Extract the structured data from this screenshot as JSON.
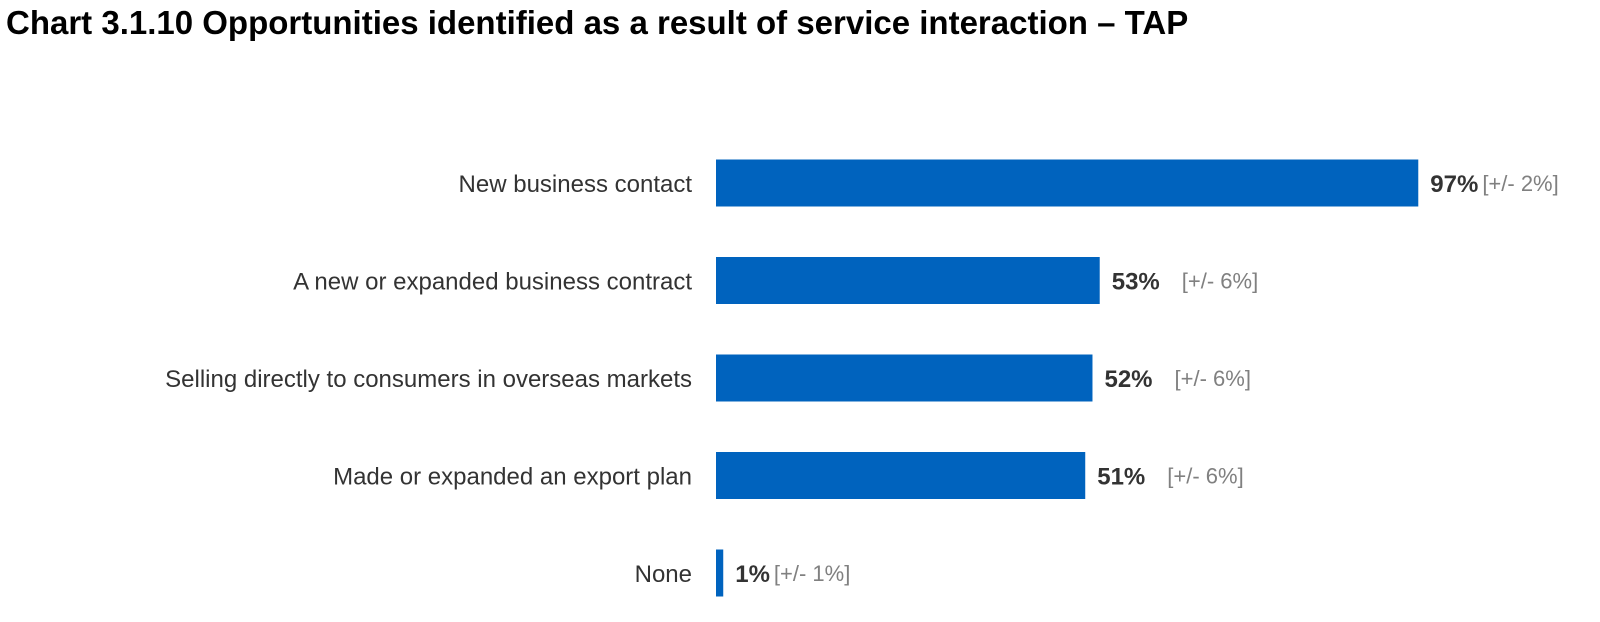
{
  "chart_data": {
    "type": "bar",
    "orientation": "horizontal",
    "title": "Chart 3.1.10 Opportunities identified as a result of service interaction – TAP",
    "categories": [
      "New business contact",
      "A new or expanded business contract",
      "Selling directly to consumers in overseas markets",
      "Made or expanded an export plan",
      "None"
    ],
    "values": [
      97,
      53,
      52,
      51,
      1
    ],
    "value_labels": [
      "97%",
      "53%",
      "52%",
      "51%",
      "1%"
    ],
    "error_labels": [
      "[+/- 2%]",
      "[+/- 6%]",
      "[+/- 6%]",
      "[+/- 6%]",
      "[+/- 1%]"
    ],
    "xlim": [
      0,
      100
    ],
    "grid": false,
    "legend": "none",
    "bar_color": "#0063BE"
  }
}
